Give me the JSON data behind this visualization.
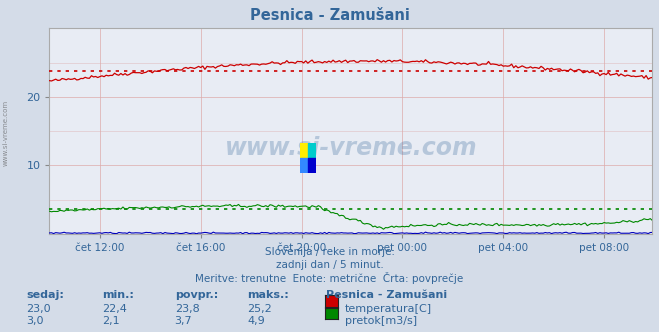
{
  "title": "Pesnica - Zamušani",
  "bg_color": "#d4dce8",
  "plot_bg_color": "#e8ecf4",
  "grid_color_h": "#ddaaaa",
  "grid_color_v": "#ddaaaa",
  "temp_color": "#cc0000",
  "flow_color": "#008800",
  "level_color": "#0000bb",
  "avg_temp_color": "#cc0000",
  "avg_flow_color": "#008800",
  "temp_avg": 23.8,
  "flow_avg": 3.7,
  "temp_min": 22.4,
  "temp_max": 25.2,
  "flow_min": 2.1,
  "flow_max": 4.9,
  "temp_sedaj": 23.0,
  "flow_sedaj": 3.0,
  "ymin": 0,
  "ymax": 30,
  "ytick_vals": [
    10,
    20
  ],
  "text_color": "#336699",
  "title_color": "#336699",
  "subtitle_lines": [
    "Slovenija / reke in morje.",
    "zadnji dan / 5 minut.",
    "Meritve: trenutne  Enote: metrične  Črta: povprečje"
  ],
  "xtick_labels": [
    "čet 12:00",
    "čet 16:00",
    "čet 20:00",
    "pet 00:00",
    "pet 04:00",
    "pet 08:00"
  ],
  "n_points": 288,
  "watermark": "www.si-vreme.com",
  "table_headers": [
    "sedaj:",
    "min.:",
    "povpr.:",
    "maks.:"
  ],
  "table_vals_temp": [
    "23,0",
    "22,4",
    "23,8",
    "25,2"
  ],
  "table_vals_flow": [
    "3,0",
    "2,1",
    "3,7",
    "4,9"
  ],
  "station_name": "Pesnica - Zamušani",
  "legend_labels": [
    "temperatura[C]",
    "pretok[m3/s]"
  ]
}
